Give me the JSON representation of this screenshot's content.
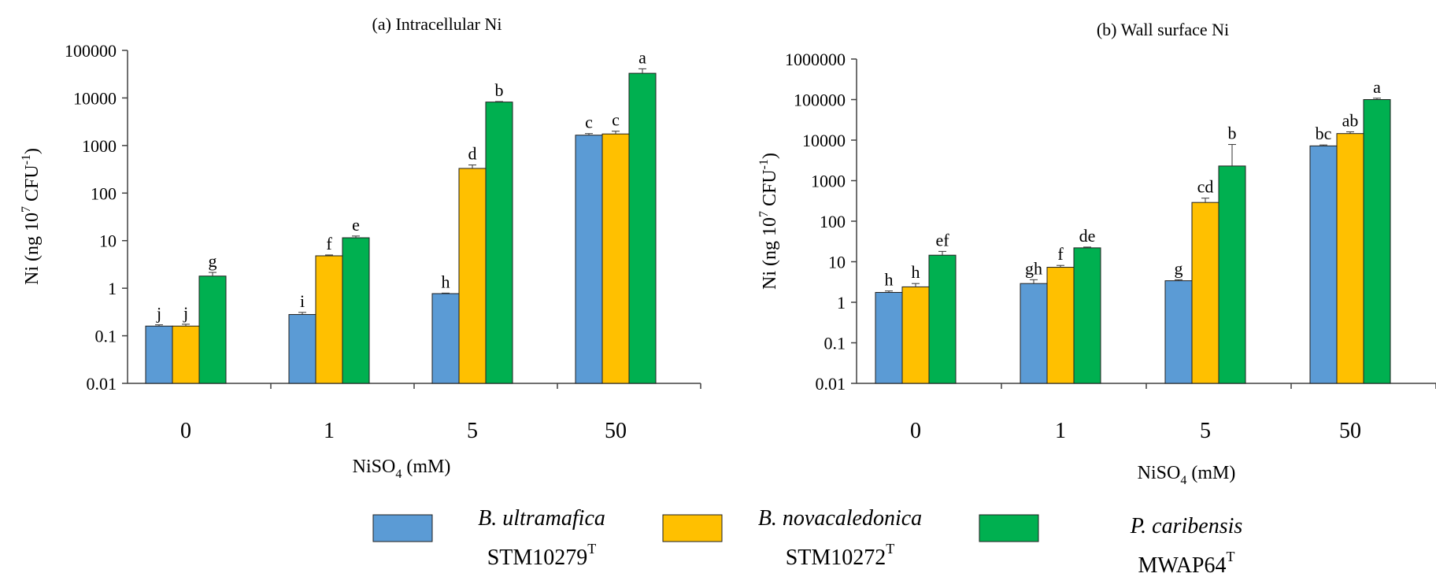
{
  "chart_data": [
    {
      "type": "bar",
      "title": "(a) Intracellular Ni",
      "xlabel_main": "NiSO",
      "xlabel_sub": "4",
      "xlabel_tail": " (mM)",
      "ylabel_main": "Ni (ng 10",
      "ylabel_sup": "7",
      "ylabel_mid": " CFU",
      "ylabel_sup2": "-1",
      "ylabel_tail": ")",
      "yscale": "log",
      "ylim": [
        0.01,
        100000
      ],
      "yticks": [
        0.01,
        0.1,
        1,
        10,
        100,
        1000,
        10000,
        100000
      ],
      "ytick_labels": [
        "0.01",
        "0.1",
        "1",
        "10",
        "100",
        "1000",
        "10000",
        "100000"
      ],
      "categories": [
        "0",
        "1",
        "5",
        "50"
      ],
      "series": [
        {
          "values": [
            0.16,
            0.28,
            0.77,
            1650
          ],
          "errors": [
            0.01,
            0.03,
            0.02,
            130
          ],
          "labels": [
            "j",
            "i",
            "h",
            "c"
          ]
        },
        {
          "values": [
            0.16,
            4.8,
            330,
            1750
          ],
          "errors": [
            0.015,
            0.2,
            60,
            250
          ],
          "labels": [
            "j",
            "f",
            "d",
            "c"
          ]
        },
        {
          "values": [
            1.8,
            11.5,
            8200,
            33000
          ],
          "errors": [
            0.35,
            1.0,
            200,
            8000
          ],
          "labels": [
            "g",
            "e",
            "b",
            "a"
          ]
        }
      ]
    },
    {
      "type": "bar",
      "title": "(b) Wall surface Ni",
      "xlabel_main": "NiSO",
      "xlabel_sub": "4",
      "xlabel_tail": " (mM)",
      "ylabel_main": "Ni (ng 10",
      "ylabel_sup": "7",
      "ylabel_mid": " CFU",
      "ylabel_sup2": "-1",
      "ylabel_tail": ")",
      "yscale": "log",
      "ylim": [
        0.01,
        1000000
      ],
      "yticks": [
        0.01,
        0.1,
        1,
        10,
        100,
        1000,
        10000,
        100000,
        1000000
      ],
      "ytick_labels": [
        "0.01",
        "0.1",
        "1",
        "10",
        "100",
        "1000",
        "10000",
        "100000",
        "1000000"
      ],
      "categories": [
        "0",
        "1",
        "5",
        "50"
      ],
      "series": [
        {
          "values": [
            1.75,
            2.9,
            3.4,
            7200
          ],
          "errors": [
            0.15,
            0.7,
            0.2,
            400
          ],
          "labels": [
            "h",
            "gh",
            "g",
            "bc"
          ]
        },
        {
          "values": [
            2.4,
            7.3,
            290,
            14500
          ],
          "errors": [
            0.5,
            0.8,
            80,
            1500
          ],
          "labels": [
            "h",
            "f",
            "cd",
            "ab"
          ]
        },
        {
          "values": [
            14.5,
            22,
            2300,
            100000
          ],
          "errors": [
            3.5,
            1.0,
            5500,
            8000
          ],
          "labels": [
            "ef",
            "de",
            "b",
            "a"
          ]
        }
      ]
    }
  ],
  "legend": {
    "placement": "bottom",
    "items": [
      {
        "name_italic": "B. ultramafica",
        "strain_main": "STM10279",
        "strain_sup": "T",
        "color": "#5b9bd5"
      },
      {
        "name_italic": "B. novacaledonica",
        "strain_main": "STM10272",
        "strain_sup": "T",
        "color": "#ffc000"
      },
      {
        "name_italic": "P. caribensis",
        "strain_main": "MWAP64",
        "strain_sup": "T",
        "color": "#00b050"
      }
    ]
  },
  "colors": {
    "series": [
      "#5b9bd5",
      "#ffc000",
      "#00b050"
    ],
    "bar_stroke": "#1f1f1f",
    "axis": "#404040"
  }
}
